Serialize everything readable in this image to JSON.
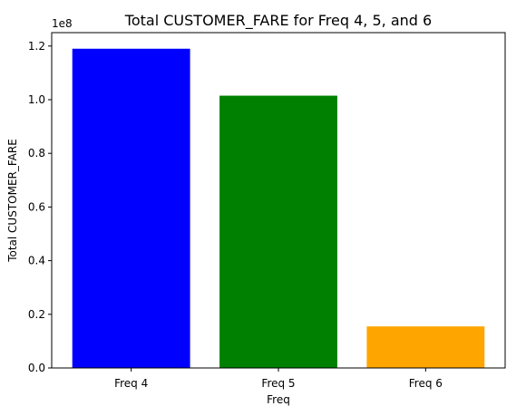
{
  "chart_data": {
    "type": "bar",
    "title": "Total CUSTOMER_FARE for Freq 4, 5, and 6",
    "xlabel": "Freq",
    "ylabel": "Total CUSTOMER_FARE",
    "offset_label": "1e8",
    "categories": [
      "Freq 4",
      "Freq 5",
      "Freq 6"
    ],
    "values": [
      119000000,
      101500000,
      15500000
    ],
    "colors": [
      "#0000ff",
      "#008000",
      "#ffa500"
    ],
    "ylim": [
      0,
      125000000
    ],
    "yticks": [
      0,
      20000000,
      40000000,
      60000000,
      80000000,
      100000000,
      120000000
    ],
    "ytick_labels": [
      "0.0",
      "0.2",
      "0.4",
      "0.6",
      "0.8",
      "1.0",
      "1.2"
    ],
    "grid": false,
    "legend": "none"
  }
}
